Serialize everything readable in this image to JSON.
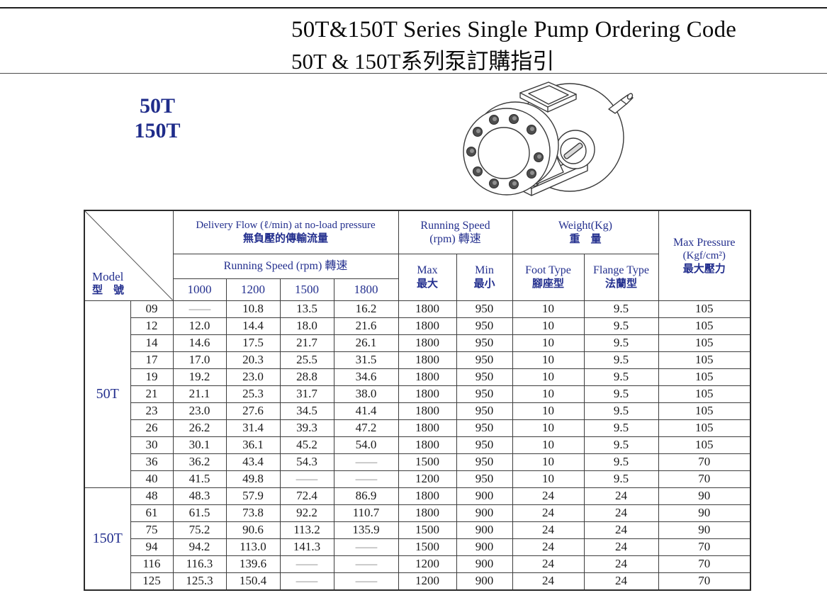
{
  "page": {
    "title_en": "50T&150T Series Single Pump Ordering Code",
    "title_zh": "50T & 150T系列泵訂購指引"
  },
  "series_badge": {
    "line1": "50T",
    "line2": "150T"
  },
  "pump_image_label": "50T/150T single pump isometric line drawing",
  "colors": {
    "header_navy": "#232f8e",
    "body_text": "#1a1a1a",
    "dash_gray": "#777777"
  },
  "table": {
    "header": {
      "model_en": "Model",
      "model_zh": "型　號",
      "delivery_flow_en": "Delivery Flow (ℓ/min) at no-load pressure",
      "delivery_flow_zh": "無負壓的傳輸流量",
      "flow_speed_sub": "Running Speed (rpm)  轉速",
      "speed_cols": [
        "1000",
        "1200",
        "1500",
        "1800"
      ],
      "running_speed_en": "Running Speed",
      "running_speed_zh": "(rpm) 轉速",
      "max_en": "Max",
      "max_zh": "最大",
      "min_en": "Min",
      "min_zh": "最小",
      "weight_en": "Weight(Kg)",
      "weight_zh": "重　量",
      "foot_en": "Foot Type",
      "foot_zh": "腳座型",
      "flange_en": "Flange Type",
      "flange_zh": "法蘭型",
      "pressure_en": "Max Pressure",
      "pressure_unit": "(Kgf/cm²)",
      "pressure_zh": "最大壓力"
    },
    "sections": [
      {
        "label": "50T",
        "rows": [
          {
            "model": "09",
            "flow": [
              "—",
              "10.8",
              "13.5",
              "16.2"
            ],
            "max": "1800",
            "min": "950",
            "foot": "10",
            "flange": "9.5",
            "pressure": "105"
          },
          {
            "model": "12",
            "flow": [
              "12.0",
              "14.4",
              "18.0",
              "21.6"
            ],
            "max": "1800",
            "min": "950",
            "foot": "10",
            "flange": "9.5",
            "pressure": "105"
          },
          {
            "model": "14",
            "flow": [
              "14.6",
              "17.5",
              "21.7",
              "26.1"
            ],
            "max": "1800",
            "min": "950",
            "foot": "10",
            "flange": "9.5",
            "pressure": "105"
          },
          {
            "model": "17",
            "flow": [
              "17.0",
              "20.3",
              "25.5",
              "31.5"
            ],
            "max": "1800",
            "min": "950",
            "foot": "10",
            "flange": "9.5",
            "pressure": "105"
          },
          {
            "model": "19",
            "flow": [
              "19.2",
              "23.0",
              "28.8",
              "34.6"
            ],
            "max": "1800",
            "min": "950",
            "foot": "10",
            "flange": "9.5",
            "pressure": "105"
          },
          {
            "model": "21",
            "flow": [
              "21.1",
              "25.3",
              "31.7",
              "38.0"
            ],
            "max": "1800",
            "min": "950",
            "foot": "10",
            "flange": "9.5",
            "pressure": "105"
          },
          {
            "model": "23",
            "flow": [
              "23.0",
              "27.6",
              "34.5",
              "41.4"
            ],
            "max": "1800",
            "min": "950",
            "foot": "10",
            "flange": "9.5",
            "pressure": "105"
          },
          {
            "model": "26",
            "flow": [
              "26.2",
              "31.4",
              "39.3",
              "47.2"
            ],
            "max": "1800",
            "min": "950",
            "foot": "10",
            "flange": "9.5",
            "pressure": "105"
          },
          {
            "model": "30",
            "flow": [
              "30.1",
              "36.1",
              "45.2",
              "54.0"
            ],
            "max": "1800",
            "min": "950",
            "foot": "10",
            "flange": "9.5",
            "pressure": "105"
          },
          {
            "model": "36",
            "flow": [
              "36.2",
              "43.4",
              "54.3",
              "—"
            ],
            "max": "1500",
            "min": "950",
            "foot": "10",
            "flange": "9.5",
            "pressure": "70"
          },
          {
            "model": "40",
            "flow": [
              "41.5",
              "49.8",
              "—",
              "—"
            ],
            "max": "1200",
            "min": "950",
            "foot": "10",
            "flange": "9.5",
            "pressure": "70"
          }
        ]
      },
      {
        "label": "150T",
        "rows": [
          {
            "model": "48",
            "flow": [
              "48.3",
              "57.9",
              "72.4",
              "86.9"
            ],
            "max": "1800",
            "min": "900",
            "foot": "24",
            "flange": "24",
            "pressure": "90"
          },
          {
            "model": "61",
            "flow": [
              "61.5",
              "73.8",
              "92.2",
              "110.7"
            ],
            "max": "1800",
            "min": "900",
            "foot": "24",
            "flange": "24",
            "pressure": "90"
          },
          {
            "model": "75",
            "flow": [
              "75.2",
              "90.6",
              "113.2",
              "135.9"
            ],
            "max": "1500",
            "min": "900",
            "foot": "24",
            "flange": "24",
            "pressure": "90"
          },
          {
            "model": "94",
            "flow": [
              "94.2",
              "113.0",
              "141.3",
              "—"
            ],
            "max": "1500",
            "min": "900",
            "foot": "24",
            "flange": "24",
            "pressure": "70"
          },
          {
            "model": "116",
            "flow": [
              "116.3",
              "139.6",
              "—",
              "—"
            ],
            "max": "1200",
            "min": "900",
            "foot": "24",
            "flange": "24",
            "pressure": "70"
          },
          {
            "model": "125",
            "flow": [
              "125.3",
              "150.4",
              "—",
              "—"
            ],
            "max": "1200",
            "min": "900",
            "foot": "24",
            "flange": "24",
            "pressure": "70"
          }
        ]
      }
    ]
  }
}
